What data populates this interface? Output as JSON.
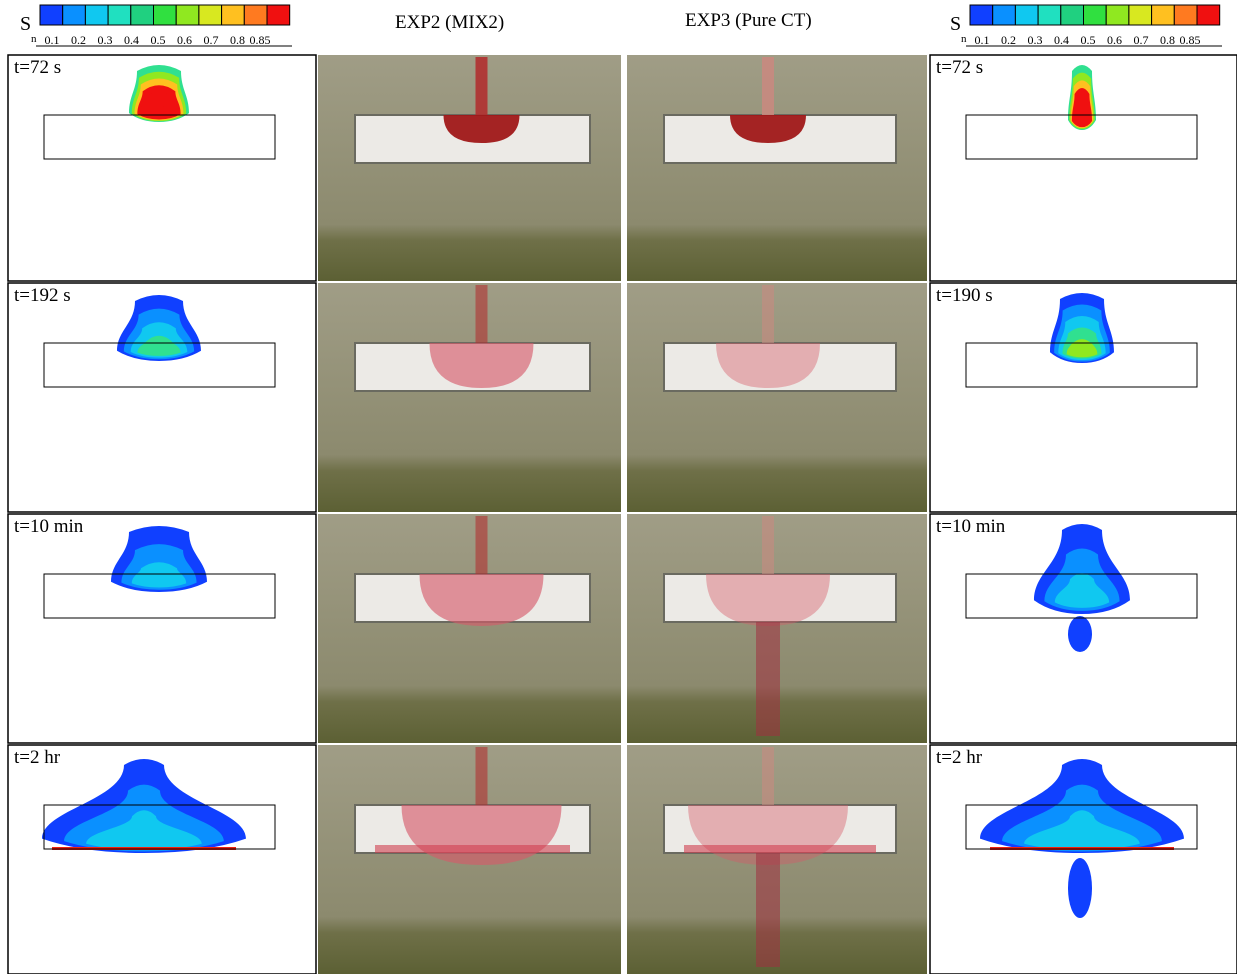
{
  "legend": {
    "symbol": "S",
    "subscript": "n",
    "ticks": [
      "0.1",
      "0.2",
      "0.3",
      "0.4",
      "0.5",
      "0.6",
      "0.7",
      "0.8",
      "0.85"
    ]
  },
  "columns": [
    "EXP2 (MIX2)",
    "EXP3 (Pure CT)"
  ],
  "left_times": [
    "t=72 s",
    "t=192 s",
    "t=10 min",
    "t=2 hr"
  ],
  "right_times": [
    "t=72 s",
    "t=190 s",
    "t=10 min",
    "t=2 hr"
  ]
}
